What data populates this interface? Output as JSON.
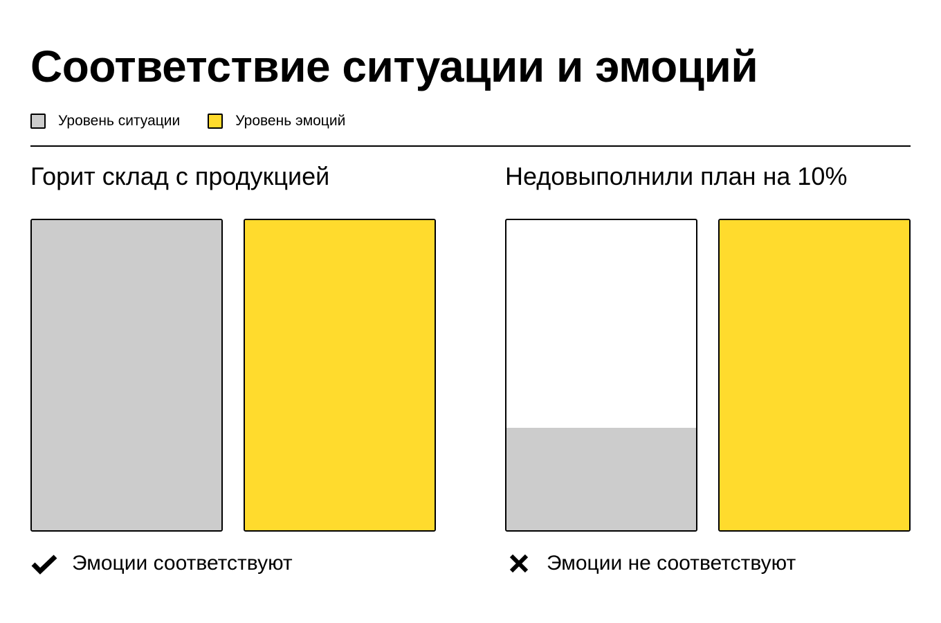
{
  "title": "Соответствие ситуации и эмоций",
  "legend": {
    "items": [
      {
        "label": "Уровень ситуации",
        "color": "#CCCCCC"
      },
      {
        "label": "Уровень эмоций",
        "color": "#FFDB2D"
      }
    ]
  },
  "colors": {
    "situation": "#CCCCCC",
    "emotion": "#FFDB2D",
    "empty": "#FFFFFF",
    "border": "#000000"
  },
  "chart_data": [
    {
      "type": "bar",
      "title": "Горит склад с продукцией",
      "categories": [
        "Уровень ситуации",
        "Уровень эмоций"
      ],
      "values": [
        1.0,
        1.0
      ],
      "ylim": [
        0,
        1
      ],
      "verdict": {
        "icon": "checkmark-icon",
        "label": "Эмоции соответствуют"
      }
    },
    {
      "type": "bar",
      "title": "Недовыполнили план на 10%",
      "categories": [
        "Уровень ситуации",
        "Уровень эмоций"
      ],
      "values": [
        0.33,
        1.0
      ],
      "ylim": [
        0,
        1
      ],
      "verdict": {
        "icon": "cross-icon",
        "label": "Эмоции не соответствуют"
      }
    }
  ]
}
